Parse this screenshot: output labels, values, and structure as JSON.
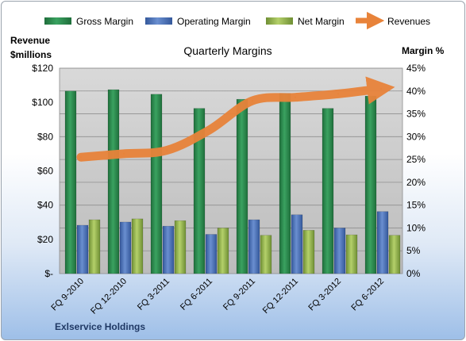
{
  "chart_data": {
    "type": "bar",
    "title": "Quarterly Margins",
    "company": "Exlservice Holdings",
    "ylabel_left_line1": "Revenue",
    "ylabel_left_line2": "$millions",
    "ylabel_right": "Margin %",
    "categories": [
      "FQ 9-2010",
      "FQ 12-2010",
      "FQ 3-2011",
      "FQ 6-2011",
      "FQ 9-2011",
      "FQ 12-2011",
      "FQ 3-2012",
      "FQ 6-2012"
    ],
    "ylim_right": [
      0,
      45
    ],
    "ylim_left": [
      0,
      120
    ],
    "left_ticks": [
      "$-",
      "$20",
      "$40",
      "$60",
      "$80",
      "$100",
      "$120"
    ],
    "right_ticks": [
      "0%",
      "5%",
      "10%",
      "15%",
      "20%",
      "25%",
      "30%",
      "35%",
      "40%",
      "45%"
    ],
    "series": [
      {
        "name": "Gross Margin",
        "axis": "right",
        "color": "#2e8b4e",
        "values": [
          40.0,
          40.3,
          39.3,
          36.2,
          38.2,
          39.5,
          36.2,
          38.9
        ]
      },
      {
        "name": "Operating Margin",
        "axis": "right",
        "color": "#4f72b8",
        "values": [
          10.6,
          11.3,
          10.4,
          8.6,
          11.8,
          12.9,
          10.0,
          13.6
        ]
      },
      {
        "name": "Net Margin",
        "axis": "right",
        "color": "#98b854",
        "values": [
          11.8,
          12.0,
          11.6,
          10.0,
          8.4,
          9.5,
          8.5,
          8.4
        ]
      },
      {
        "name": "Revenues",
        "axis": "left",
        "color": "#e8833a",
        "type": "line",
        "values": [
          68,
          70,
          72,
          84,
          101,
          103,
          105,
          108
        ]
      }
    ],
    "grid": true,
    "legend": "top"
  }
}
